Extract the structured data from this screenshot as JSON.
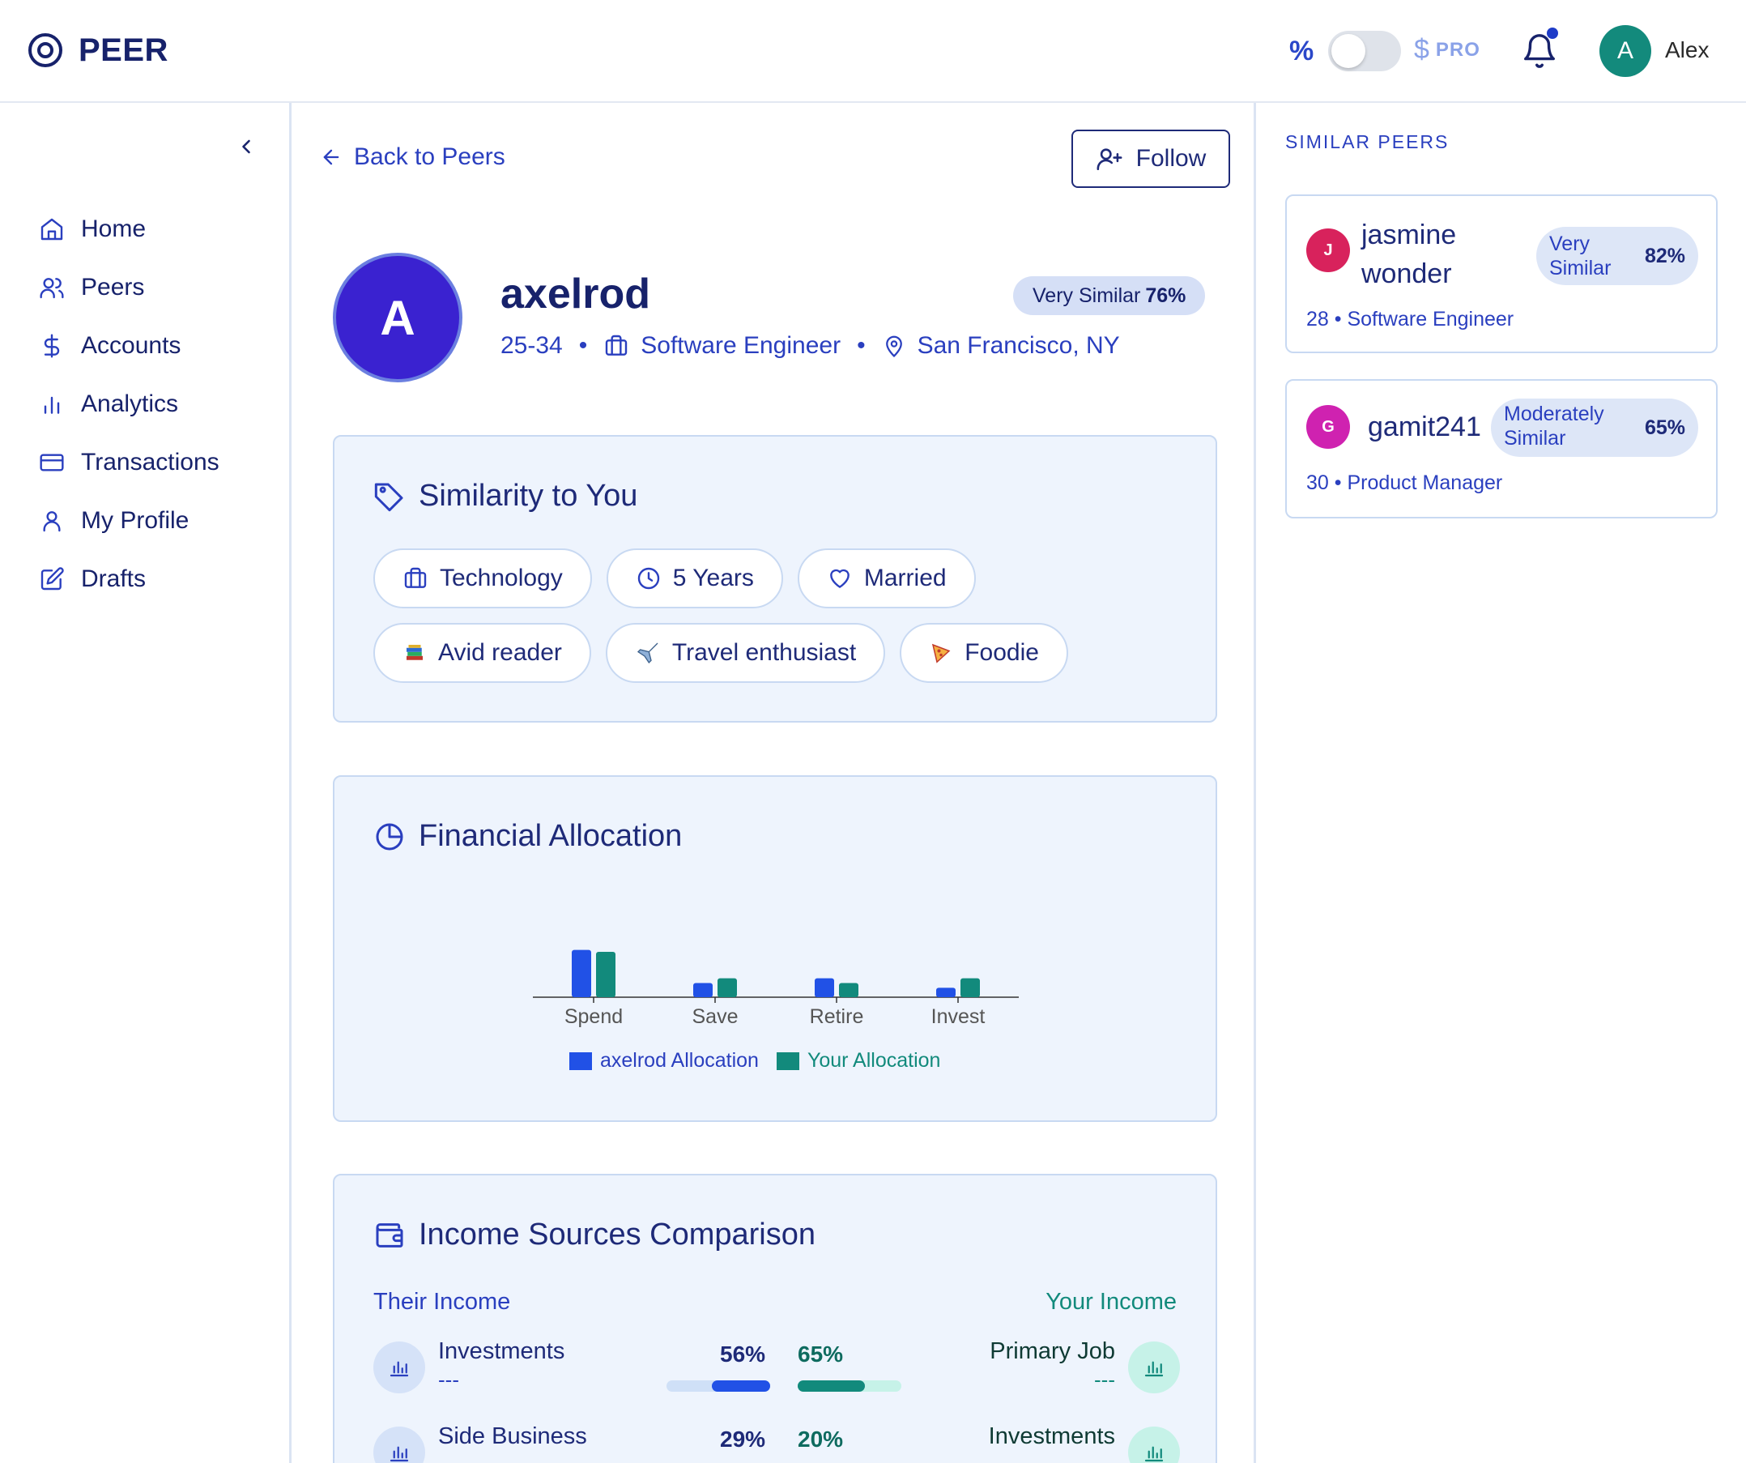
{
  "brand": {
    "name": "PEER"
  },
  "topbar": {
    "percent_symbol": "%",
    "currency_symbol": "$",
    "pro_label": "PRO",
    "user": {
      "initial": "A",
      "name": "Alex"
    }
  },
  "sidebar": {
    "items": [
      {
        "label": "Home",
        "icon": "home-icon"
      },
      {
        "label": "Peers",
        "icon": "users-icon"
      },
      {
        "label": "Accounts",
        "icon": "dollar-icon"
      },
      {
        "label": "Analytics",
        "icon": "bar-chart-icon"
      },
      {
        "label": "Transactions",
        "icon": "credit-card-icon"
      },
      {
        "label": "My Profile",
        "icon": "user-icon"
      },
      {
        "label": "Drafts",
        "icon": "edit-icon"
      }
    ]
  },
  "main": {
    "back_label": "Back to Peers",
    "follow_label": "Follow",
    "profile": {
      "initial": "A",
      "name": "axelrod",
      "similarity_label": "Very Similar",
      "similarity_pct": "76%",
      "age": "25-34",
      "occupation": "Software Engineer",
      "location": "San Francisco, NY"
    },
    "similarity": {
      "title": "Similarity to You",
      "tags": [
        {
          "label": "Technology",
          "icon": "briefcase-icon"
        },
        {
          "label": "5 Years",
          "icon": "clock-icon"
        },
        {
          "label": "Married",
          "icon": "heart-icon"
        },
        {
          "label": "Avid reader",
          "icon": "books-emoji"
        },
        {
          "label": "Travel enthusiast",
          "icon": "airplane-emoji"
        },
        {
          "label": "Foodie",
          "icon": "pizza-emoji"
        }
      ]
    },
    "allocation": {
      "title": "Financial Allocation"
    },
    "income": {
      "title": "Income Sources Comparison",
      "their_label": "Their Income",
      "your_label": "Your Income",
      "rows": [
        {
          "their_name": "Investments",
          "their_sub": "---",
          "their_pct": "56%",
          "their_value": 56,
          "your_pct": "65%",
          "your_value": 65,
          "your_name": "Primary Job",
          "your_sub": "---"
        },
        {
          "their_name": "Side Business",
          "their_sub": "",
          "their_pct": "29%",
          "their_value": 29,
          "your_pct": "20%",
          "your_value": 20,
          "your_name": "Investments",
          "your_sub": ""
        }
      ]
    }
  },
  "chart_data": {
    "type": "bar",
    "categories": [
      "Spend",
      "Save",
      "Retire",
      "Invest"
    ],
    "series": [
      {
        "name": "axelrod Allocation",
        "values": [
          50,
          15,
          20,
          10
        ],
        "color": "#2151e6"
      },
      {
        "name": "Your Allocation",
        "values": [
          48,
          20,
          15,
          20
        ],
        "color": "#128a7c"
      }
    ],
    "ylim": [
      0,
      60
    ],
    "legend": "bottom",
    "grid": false
  },
  "right_panel": {
    "title": "SIMILAR PEERS",
    "peers": [
      {
        "initial": "J",
        "name": "jasmine wonder",
        "badge_label": "Very Similar",
        "badge_pct": "82%",
        "meta": "28 • Software Engineer",
        "color": "#d8225c"
      },
      {
        "initial": "G",
        "name": "gamit241",
        "badge_label": "Moderately Similar",
        "badge_pct": "65%",
        "meta": "30 • Product Manager",
        "color": "#cf22b0"
      }
    ]
  },
  "colors": {
    "accent": "#2151e6",
    "teal": "#128a7c",
    "navy": "#1e2a78"
  }
}
